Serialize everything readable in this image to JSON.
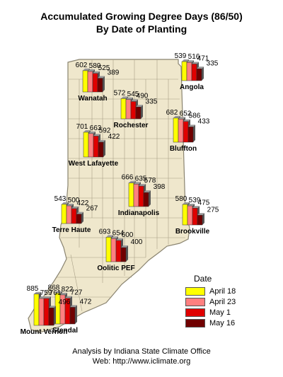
{
  "chart_data": {
    "type": "bar",
    "title": "Accumulated Growing Degree Days (86/50)",
    "subtitle": "By Date of Planting",
    "legend_title": "Date",
    "legend_placement": "bottom-right",
    "series": [
      {
        "name": "April 18",
        "color": "#ffff00"
      },
      {
        "name": "April 23",
        "color": "#ff8080"
      },
      {
        "name": "May 1",
        "color": "#e00000"
      },
      {
        "name": "May 16",
        "color": "#700000"
      }
    ],
    "locations": [
      {
        "name": "Angola",
        "values": [
          539,
          516,
          471,
          335
        ]
      },
      {
        "name": "Wanatah",
        "values": [
          602,
          580,
          525,
          389
        ]
      },
      {
        "name": "Rochester",
        "values": [
          572,
          545,
          490,
          335
        ]
      },
      {
        "name": "Bluffton",
        "values": [
          682,
          652,
          586,
          433
        ]
      },
      {
        "name": "West Lafayette",
        "values": [
          701,
          663,
          592,
          422
        ]
      },
      {
        "name": "Indianapolis",
        "values": [
          666,
          635,
          578,
          398
        ]
      },
      {
        "name": "Brookville",
        "values": [
          580,
          539,
          475,
          275
        ]
      },
      {
        "name": "Terre Haute",
        "values": [
          543,
          500,
          422,
          267
        ]
      },
      {
        "name": "Oolitic PEF",
        "values": [
          693,
          654,
          600,
          400
        ]
      },
      {
        "name": "Stendal",
        "values": [
          868,
          822,
          727,
          472
        ]
      },
      {
        "name": "Mount Vernon",
        "values": [
          885,
          759,
          761,
          496
        ]
      }
    ]
  },
  "footer": {
    "line1": "Analysis by Indiana State Climate Office",
    "line2": "Web: http://www.iclimate.org"
  }
}
